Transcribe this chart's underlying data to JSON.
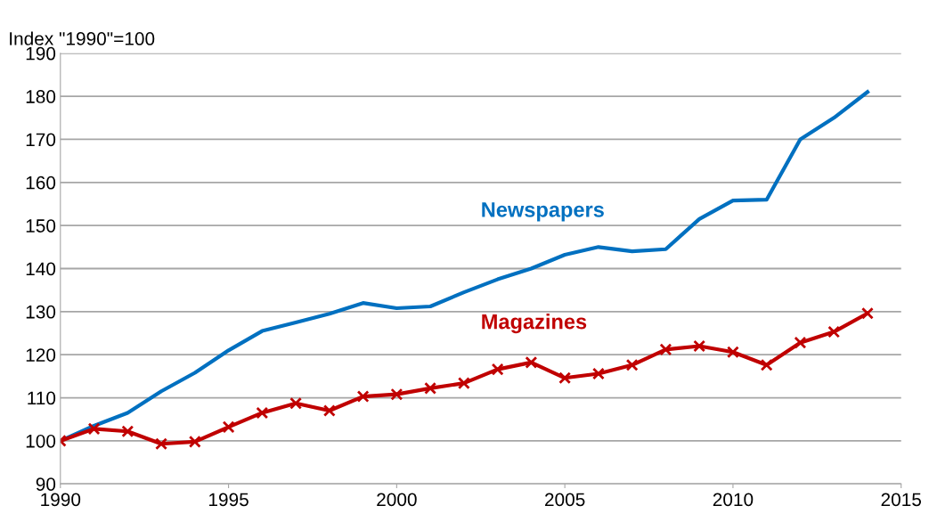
{
  "chart_data": {
    "type": "line",
    "ylabel": "Index \"1990\"=100",
    "x": [
      1990,
      1991,
      1992,
      1993,
      1994,
      1995,
      1996,
      1997,
      1998,
      1999,
      2000,
      2001,
      2002,
      2003,
      2004,
      2005,
      2006,
      2007,
      2008,
      2009,
      2010,
      2011,
      2012,
      2013,
      2014
    ],
    "series": [
      {
        "name": "Newspapers",
        "color": "#0070c0",
        "marker": "none",
        "values": [
          100,
          103.5,
          106.5,
          111.5,
          115.8,
          121,
          125.5,
          127.5,
          129.5,
          132,
          130.8,
          131.2,
          134.5,
          137.5,
          140,
          143.2,
          145,
          144,
          144.5,
          151.5,
          155.8,
          156,
          170,
          175,
          181
        ]
      },
      {
        "name": "Magazines",
        "color": "#c00000",
        "marker": "cross",
        "values": [
          100,
          102.8,
          102.2,
          99.3,
          99.8,
          103.2,
          106.5,
          108.7,
          107,
          110.3,
          110.8,
          112.2,
          113.4,
          116.6,
          118.2,
          114.6,
          115.6,
          117.6,
          121.2,
          122,
          120.6,
          117.6,
          122.8,
          125.3,
          129.6
        ]
      }
    ],
    "xlim": [
      1990,
      2015
    ],
    "xticks": [
      1990,
      1995,
      2000,
      2005,
      2010,
      2015
    ],
    "ylim": [
      90,
      190
    ],
    "yticks": [
      90,
      100,
      110,
      120,
      130,
      140,
      150,
      160,
      170,
      180,
      190
    ],
    "grid": "y",
    "legend": false,
    "line_style": "solid"
  }
}
